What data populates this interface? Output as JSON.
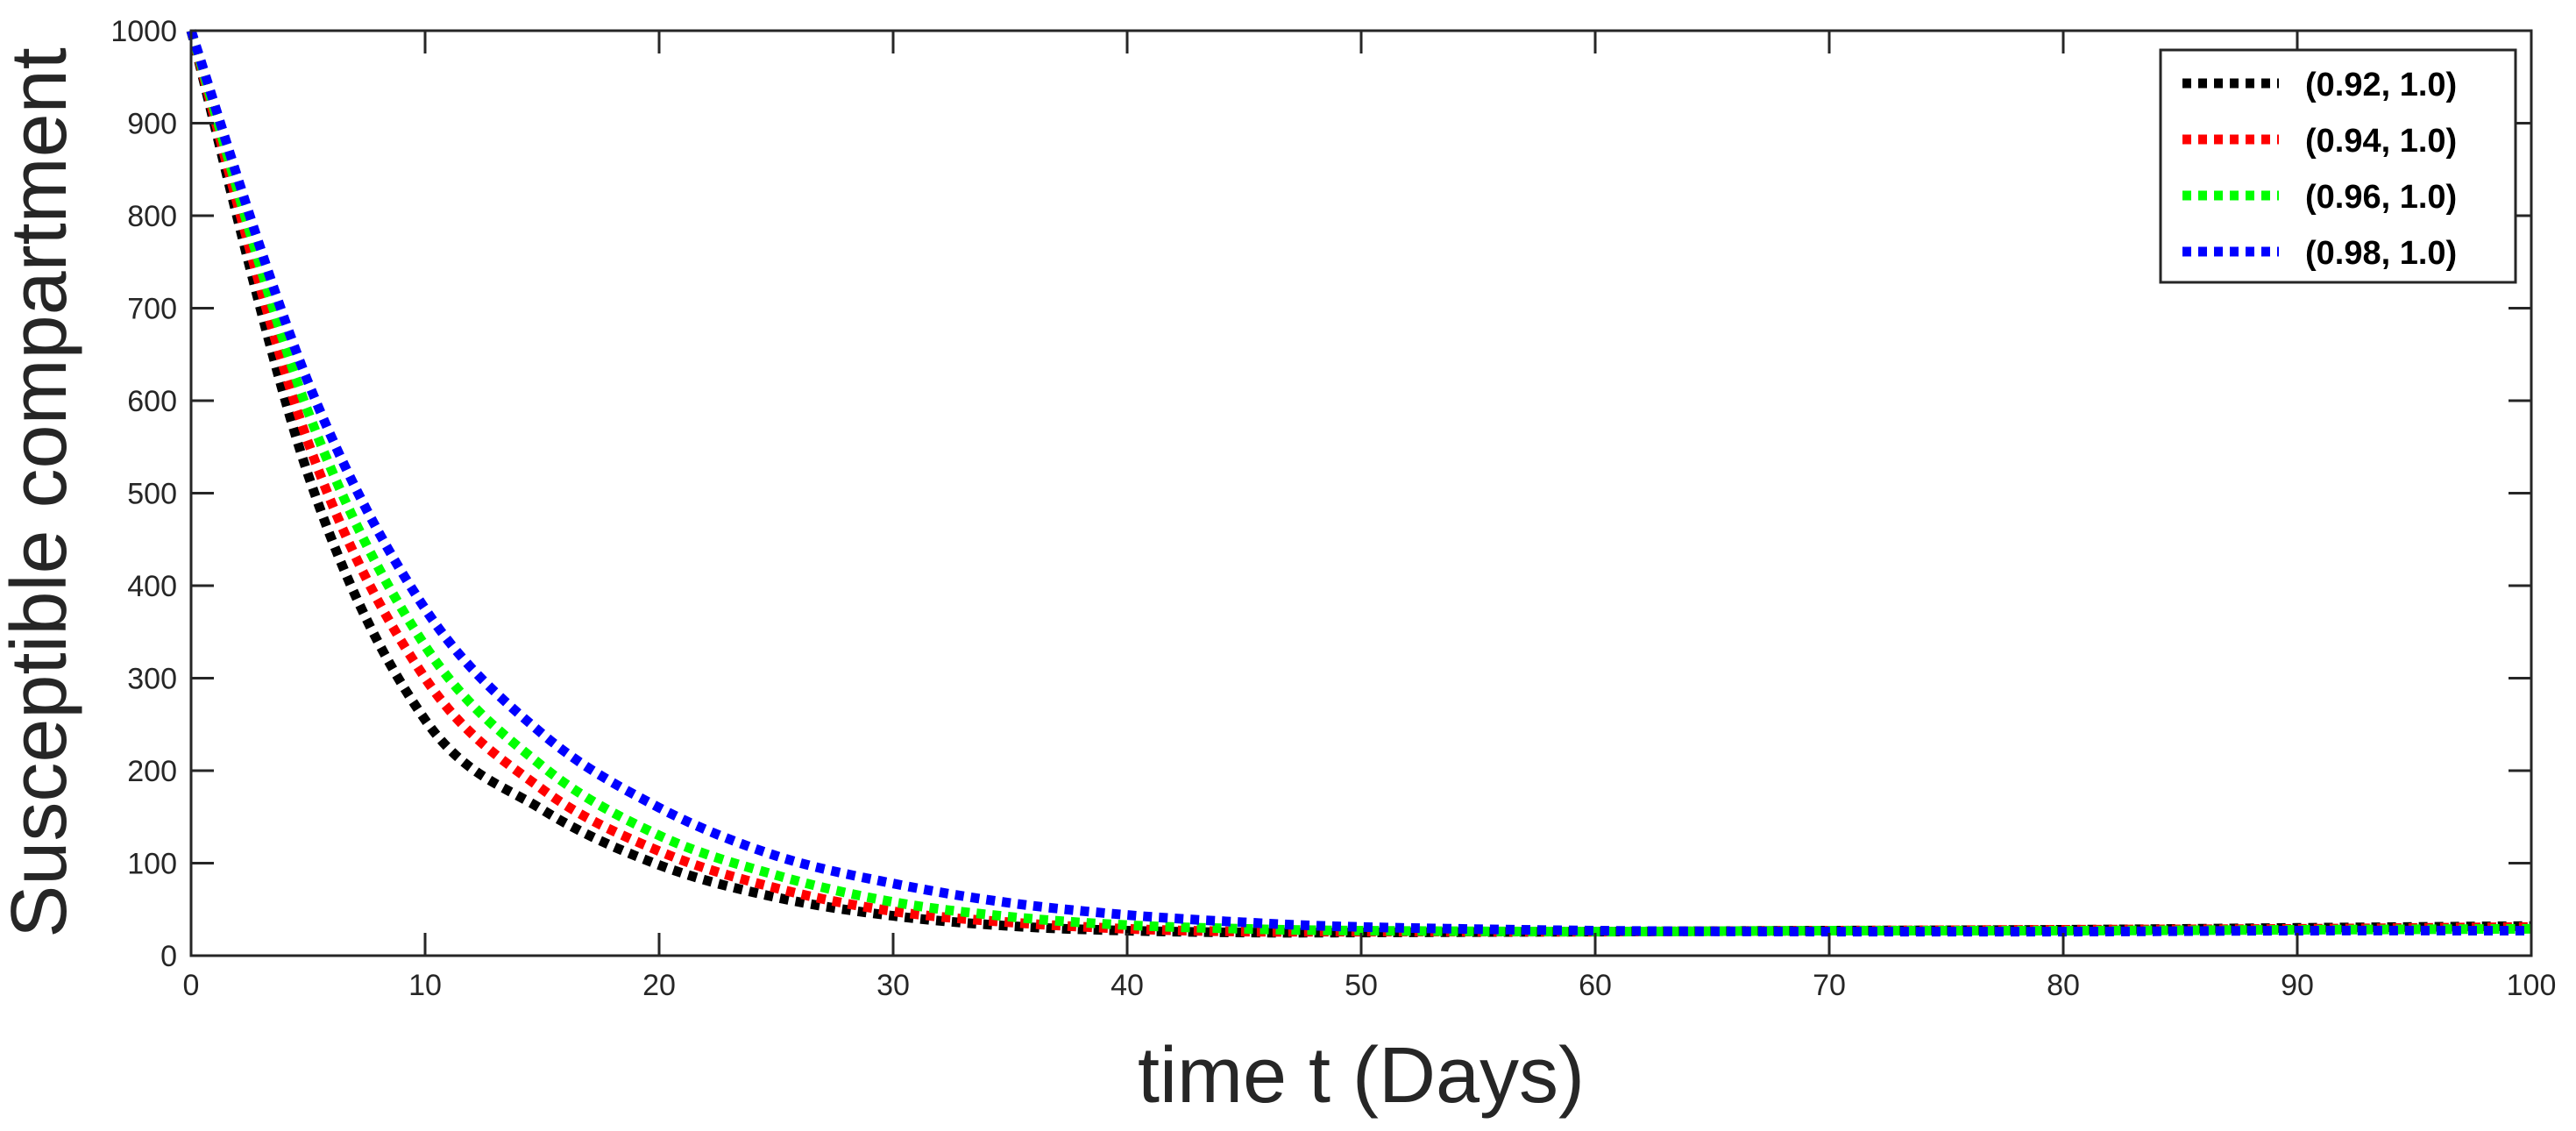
{
  "chart_data": {
    "type": "line",
    "xlabel": "time t (Days)",
    "ylabel": "Susceptible compartment",
    "xlim": [
      0,
      100
    ],
    "ylim": [
      0,
      1000
    ],
    "x_ticks": [
      0,
      10,
      20,
      30,
      40,
      50,
      60,
      70,
      80,
      90,
      100
    ],
    "y_ticks": [
      0,
      100,
      200,
      300,
      400,
      500,
      600,
      700,
      800,
      900,
      1000
    ],
    "grid": false,
    "legend_position": "top-right",
    "line_style": "dotted",
    "x": [
      0,
      5,
      10,
      15,
      20,
      25,
      30,
      35,
      40,
      45,
      50,
      60,
      70,
      80,
      90,
      100
    ],
    "series": [
      {
        "name": "(0.92, 1.0)",
        "color": "#000000",
        "values": [
          1000,
          520,
          255,
          158,
          98,
          63,
          43,
          32,
          27,
          25,
          25,
          26,
          27,
          28,
          30,
          32
        ]
      },
      {
        "name": "(0.94, 1.0)",
        "color": "#ff0000",
        "values": [
          1000,
          555,
          300,
          180,
          113,
          73,
          48,
          36,
          29,
          26,
          26,
          26,
          27,
          28,
          29,
          31
        ]
      },
      {
        "name": "(0.96, 1.0)",
        "color": "#00ff00",
        "values": [
          1000,
          588,
          335,
          205,
          130,
          87,
          58,
          42,
          33,
          29,
          27,
          26,
          27,
          27,
          28,
          29
        ]
      },
      {
        "name": "(0.98, 1.0)",
        "color": "#0000ff",
        "values": [
          1000,
          620,
          375,
          240,
          160,
          108,
          78,
          57,
          44,
          36,
          31,
          27,
          26,
          26,
          27,
          27
        ]
      }
    ]
  }
}
